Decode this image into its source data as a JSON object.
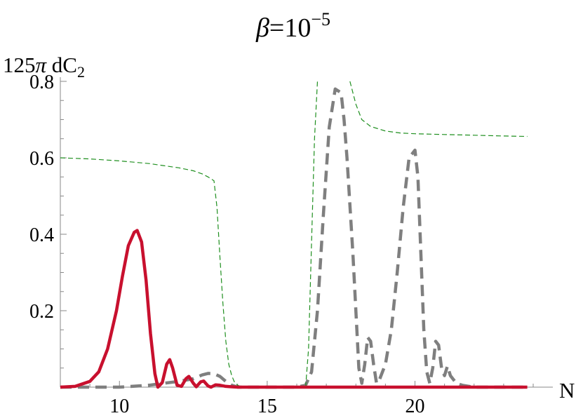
{
  "chart_data": {
    "type": "line",
    "title_symbol": "β",
    "title_eq": "=10",
    "title_exp": "−5",
    "ylabel_pre": "125",
    "ylabel_pi": "π",
    "ylabel_d": " dC",
    "ylabel_sub": "2",
    "xlabel": "N",
    "xlim": [
      8,
      24
    ],
    "ylim": [
      0,
      0.8
    ],
    "xticks": [
      10,
      15,
      20
    ],
    "xtick_labels": [
      "10",
      "15",
      "20"
    ],
    "yticks": [
      0.2,
      0.4,
      0.6,
      0.8
    ],
    "ytick_labels": [
      "0.2",
      "0.4",
      "0.6",
      "0.8"
    ],
    "grid": false,
    "series": [
      {
        "style": "solid",
        "color": "#c8102e",
        "x": [
          8.0,
          8.5,
          9.0,
          9.3,
          9.6,
          9.9,
          10.1,
          10.3,
          10.5,
          10.6,
          10.75,
          10.9,
          11.05,
          11.2,
          11.3,
          11.45,
          11.6,
          11.7,
          11.8,
          11.95,
          12.1,
          12.25,
          12.35,
          12.5,
          12.6,
          12.75,
          12.85,
          13.0,
          13.1,
          13.25,
          13.4,
          13.6,
          13.8,
          14.0,
          14.2,
          15.0,
          16.0,
          17.0,
          18.0,
          19.0,
          20.0,
          21.0,
          22.0,
          23.0,
          23.8
        ],
        "y": [
          0.0,
          0.002,
          0.015,
          0.04,
          0.1,
          0.2,
          0.29,
          0.37,
          0.405,
          0.41,
          0.38,
          0.28,
          0.14,
          0.035,
          0.0,
          0.012,
          0.06,
          0.072,
          0.05,
          0.005,
          0.002,
          0.022,
          0.028,
          0.01,
          0.001,
          0.014,
          0.016,
          0.003,
          0.0,
          0.006,
          0.005,
          0.002,
          0.001,
          0.0,
          0.0,
          0.0,
          0.0,
          0.0,
          0.0,
          0.0,
          0.0,
          0.0,
          0.0,
          0.0,
          0.0
        ]
      },
      {
        "style": "dashed",
        "color": "#7f7f7f",
        "x": [
          8.0,
          9.0,
          10.0,
          11.0,
          11.5,
          12.0,
          12.5,
          12.8,
          13.0,
          13.2,
          13.4,
          13.6,
          13.8,
          14.0,
          15.0,
          16.0,
          16.3,
          16.5,
          16.7,
          16.9,
          17.1,
          17.3,
          17.5,
          17.6,
          17.7,
          17.9,
          18.1,
          18.2,
          18.3,
          18.4,
          18.5,
          18.6,
          18.7,
          18.8,
          19.0,
          19.2,
          19.4,
          19.6,
          19.8,
          20.0,
          20.1,
          20.2,
          20.3,
          20.4,
          20.5,
          20.6,
          20.7,
          20.8,
          20.9,
          21.0,
          21.1,
          21.2,
          21.4,
          21.6,
          22.0,
          23.0,
          23.8
        ],
        "y": [
          0.0,
          0.0,
          0.0,
          0.005,
          0.01,
          0.015,
          0.022,
          0.032,
          0.036,
          0.035,
          0.028,
          0.015,
          0.005,
          0.0,
          0.0,
          0.0,
          0.005,
          0.04,
          0.2,
          0.45,
          0.68,
          0.78,
          0.77,
          0.7,
          0.6,
          0.35,
          0.05,
          0.01,
          0.06,
          0.13,
          0.12,
          0.06,
          0.01,
          0.02,
          0.06,
          0.15,
          0.3,
          0.47,
          0.6,
          0.62,
          0.55,
          0.35,
          0.15,
          0.04,
          0.01,
          0.05,
          0.12,
          0.11,
          0.05,
          0.03,
          0.055,
          0.03,
          0.01,
          0.005,
          0.0,
          0.0,
          0.0
        ]
      },
      {
        "style": "thin-dashed",
        "color": "#1f8f1f",
        "x": [
          8.0,
          9.0,
          10.0,
          11.0,
          12.0,
          12.5,
          12.8,
          13.0,
          13.2,
          13.3,
          13.4,
          13.5,
          13.6,
          13.7,
          13.8,
          13.9,
          14.0,
          14.1,
          14.2,
          14.4
        ],
        "y": [
          0.6,
          0.597,
          0.592,
          0.585,
          0.574,
          0.566,
          0.558,
          0.55,
          0.54,
          0.47,
          0.34,
          0.22,
          0.12,
          0.06,
          0.03,
          0.012,
          0.005,
          0.002,
          0.001,
          0.0
        ]
      },
      {
        "style": "thin-dashed",
        "color": "#1f8f1f",
        "x": [
          16.3,
          16.4,
          16.5,
          16.6,
          16.7
        ],
        "y": [
          0.0,
          0.1,
          0.38,
          0.65,
          0.8
        ]
      },
      {
        "style": "thin-dashed",
        "color": "#1f8f1f",
        "x": [
          17.8,
          18.0,
          18.2,
          18.5,
          19.0,
          19.5,
          20.0,
          21.0,
          22.0,
          23.0,
          23.8
        ],
        "y": [
          0.8,
          0.74,
          0.7,
          0.682,
          0.67,
          0.665,
          0.663,
          0.661,
          0.659,
          0.657,
          0.656
        ]
      }
    ]
  }
}
